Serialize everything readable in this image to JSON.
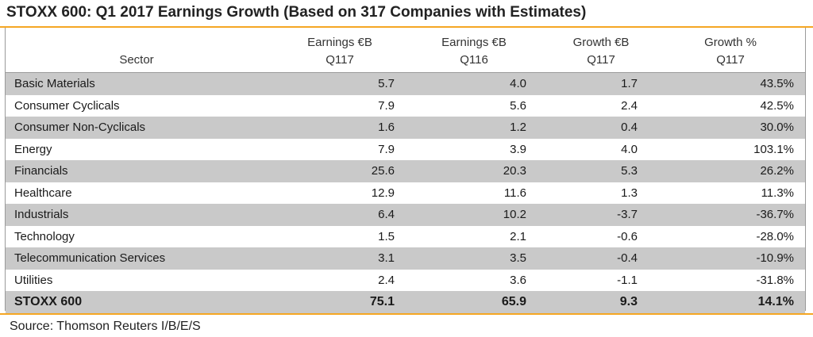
{
  "title": "STOXX 600: Q1 2017 Earnings Growth (Based on 317 Companies with Estimates)",
  "source": "Source: Thomson Reuters I/B/E/S",
  "colors": {
    "accent_rule": "#f5a623",
    "row_shade": "#c9c9c9",
    "border": "#9a9a9a"
  },
  "chart_data": {
    "type": "table",
    "title": "STOXX 600: Q1 2017 Earnings Growth (Based on 317 Companies with Estimates)",
    "columns": [
      {
        "line1": "",
        "line2": "Sector"
      },
      {
        "line1": "Earnings €B",
        "line2": "Q117"
      },
      {
        "line1": "Earnings €B",
        "line2": "Q116"
      },
      {
        "line1": "Growth €B",
        "line2": "Q117"
      },
      {
        "line1": "Growth %",
        "line2": "Q117"
      }
    ],
    "rows": [
      {
        "sector": "Basic Materials",
        "earn_q117": "5.7",
        "earn_q116": "4.0",
        "growth_eur": "1.7",
        "growth_pct": "43.5%"
      },
      {
        "sector": "Consumer Cyclicals",
        "earn_q117": "7.9",
        "earn_q116": "5.6",
        "growth_eur": "2.4",
        "growth_pct": "42.5%"
      },
      {
        "sector": "Consumer Non-Cyclicals",
        "earn_q117": "1.6",
        "earn_q116": "1.2",
        "growth_eur": "0.4",
        "growth_pct": "30.0%"
      },
      {
        "sector": "Energy",
        "earn_q117": "7.9",
        "earn_q116": "3.9",
        "growth_eur": "4.0",
        "growth_pct": "103.1%"
      },
      {
        "sector": "Financials",
        "earn_q117": "25.6",
        "earn_q116": "20.3",
        "growth_eur": "5.3",
        "growth_pct": "26.2%"
      },
      {
        "sector": "Healthcare",
        "earn_q117": "12.9",
        "earn_q116": "11.6",
        "growth_eur": "1.3",
        "growth_pct": "11.3%"
      },
      {
        "sector": "Industrials",
        "earn_q117": "6.4",
        "earn_q116": "10.2",
        "growth_eur": "-3.7",
        "growth_pct": "-36.7%"
      },
      {
        "sector": "Technology",
        "earn_q117": "1.5",
        "earn_q116": "2.1",
        "growth_eur": "-0.6",
        "growth_pct": "-28.0%"
      },
      {
        "sector": "Telecommunication Services",
        "earn_q117": "3.1",
        "earn_q116": "3.5",
        "growth_eur": "-0.4",
        "growth_pct": "-10.9%"
      },
      {
        "sector": "Utilities",
        "earn_q117": "2.4",
        "earn_q116": "3.6",
        "growth_eur": "-1.1",
        "growth_pct": "-31.8%"
      }
    ],
    "total": {
      "sector": "STOXX 600",
      "earn_q117": "75.1",
      "earn_q116": "65.9",
      "growth_eur": "9.3",
      "growth_pct": "14.1%"
    }
  }
}
